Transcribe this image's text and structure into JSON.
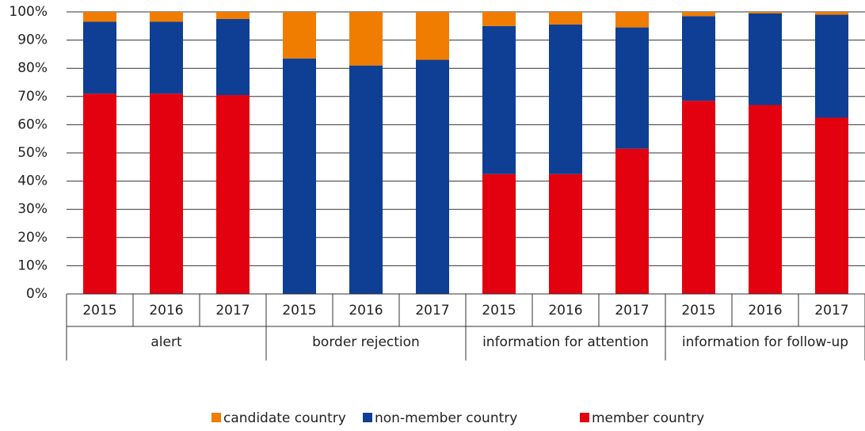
{
  "chart_data": {
    "type": "stacked_bar",
    "groups": [
      "alert",
      "border rejection",
      "information for attention",
      "information for follow-up"
    ],
    "categories": [
      "2015",
      "2016",
      "2017",
      "2015",
      "2016",
      "2017",
      "2015",
      "2016",
      "2017",
      "2015",
      "2016",
      "2017"
    ],
    "series": [
      {
        "name": "member country",
        "color": "#e3000f",
        "values": [
          71,
          71,
          70.5,
          0,
          0,
          0,
          42.5,
          42.5,
          51.5,
          68.5,
          67,
          62.5
        ]
      },
      {
        "name": "non-member country",
        "color": "#0e3f95",
        "values": [
          25.5,
          25.5,
          27,
          83.5,
          81,
          83,
          52.5,
          53,
          43,
          30,
          32.5,
          36.5
        ]
      },
      {
        "name": "candidate country",
        "color": "#f07d00",
        "values": [
          3.5,
          3.5,
          2.5,
          16.5,
          19,
          17,
          5,
          4.5,
          5.5,
          1.5,
          0.5,
          1
        ]
      }
    ],
    "ylim": [
      0,
      100
    ],
    "yticks": [
      {
        "value": 0,
        "label": "0%"
      },
      {
        "value": 10,
        "label": "10%"
      },
      {
        "value": 20,
        "label": "20%"
      },
      {
        "value": 30,
        "label": "30%"
      },
      {
        "value": 40,
        "label": "40%"
      },
      {
        "value": 50,
        "label": "50%"
      },
      {
        "value": 60,
        "label": "60%"
      },
      {
        "value": 70,
        "label": "70%"
      },
      {
        "value": 80,
        "label": "80%"
      },
      {
        "value": 90,
        "label": "90%"
      },
      {
        "value": 100,
        "label": "100%"
      }
    ],
    "grid": true,
    "legend": "bottom"
  }
}
